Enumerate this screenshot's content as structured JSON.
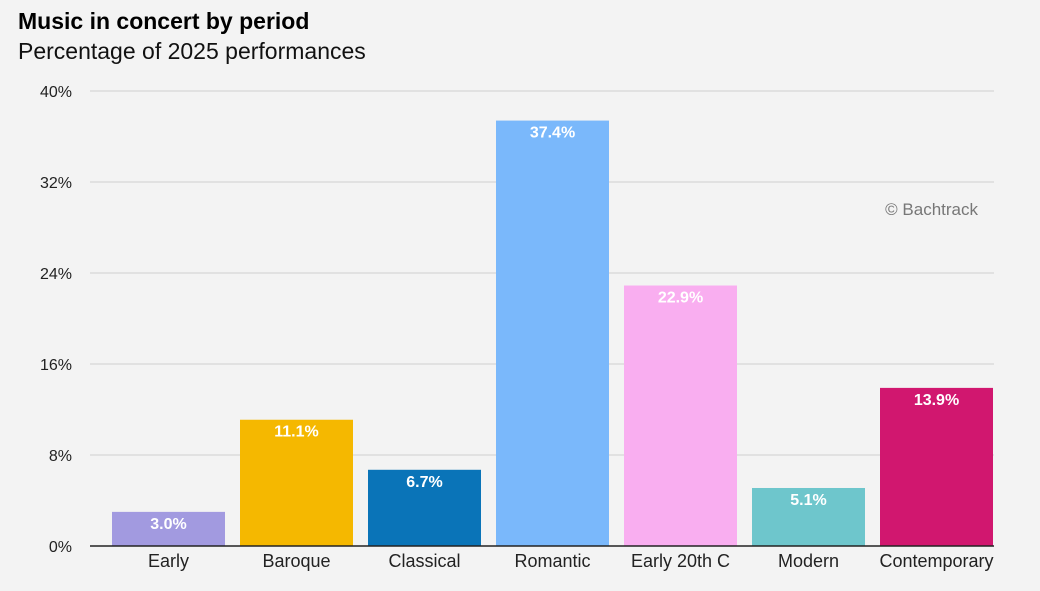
{
  "chart_data": {
    "type": "bar",
    "title": "Music in concert by period",
    "subtitle": "Percentage of 2025 performances",
    "categories": [
      "Early",
      "Baroque",
      "Classical",
      "Romantic",
      "Early 20th C",
      "Modern",
      "Contemporary"
    ],
    "values": [
      3.0,
      11.1,
      6.7,
      37.4,
      22.9,
      5.1,
      13.9
    ],
    "data_labels": [
      "3.0%",
      "11.1%",
      "6.7%",
      "37.4%",
      "22.9%",
      "5.1%",
      "13.9%"
    ],
    "colors": [
      "#a29ae0",
      "#f5b800",
      "#0a74b8",
      "#7ab8fb",
      "#f9aef0",
      "#6ec6cc",
      "#d1176f"
    ],
    "y_ticks": [
      0,
      8,
      16,
      24,
      32,
      40
    ],
    "y_tick_labels": [
      "0%",
      "8%",
      "16%",
      "24%",
      "32%",
      "40%"
    ],
    "ylim": [
      0,
      40
    ],
    "grid": true,
    "legend": false
  },
  "credit": "© Bachtrack"
}
